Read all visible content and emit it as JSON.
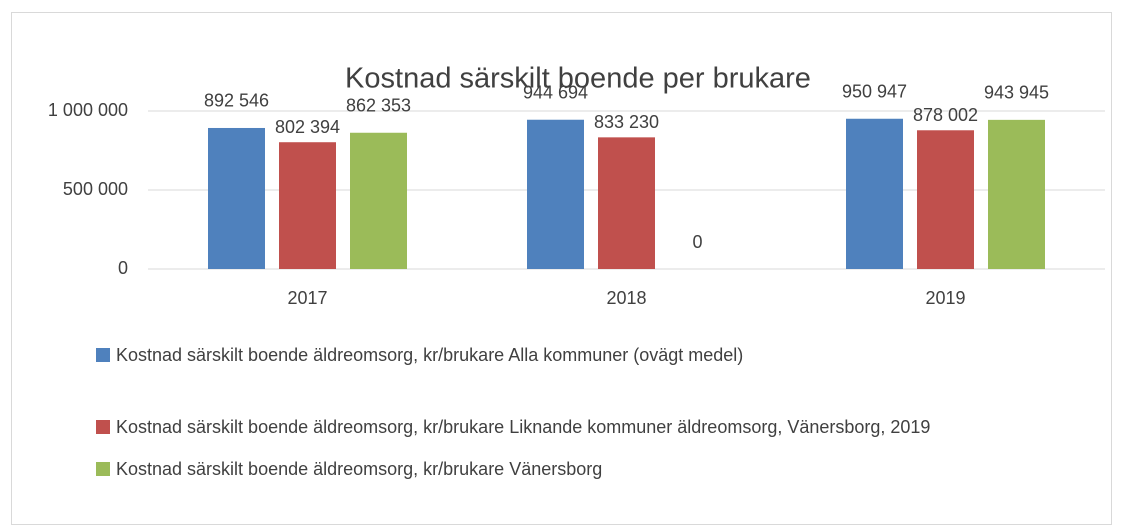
{
  "chart_data": {
    "type": "bar",
    "title": "Kostnad särskilt boende per brukare",
    "categories": [
      "2017",
      "2018",
      "2019"
    ],
    "series": [
      {
        "name": "Kostnad särskilt boende äldreomsorg, kr/brukare Alla kommuner (ovägt medel)",
        "color": "#4f81bd",
        "values": [
          892546,
          944694,
          950947
        ],
        "value_labels": [
          "892 546",
          "944 694",
          "950 947"
        ]
      },
      {
        "name": "Kostnad särskilt boende äldreomsorg, kr/brukare Liknande kommuner äldreomsorg, Vänersborg, 2019",
        "color": "#c0504d",
        "values": [
          802394,
          833230,
          878002
        ],
        "value_labels": [
          "802 394",
          "833 230",
          "878 002"
        ]
      },
      {
        "name": "Kostnad särskilt boende äldreomsorg, kr/brukare Vänersborg",
        "color": "#9bbb59",
        "values": [
          862353,
          0,
          943945
        ],
        "value_labels": [
          "862 353",
          "0",
          "943 945"
        ]
      }
    ],
    "ylim": [
      0,
      1000000
    ],
    "yticks": [
      0,
      {
        "value": 500000,
        "label": "500 000"
      },
      {
        "value": 1000000,
        "label": "1 000 000"
      }
    ],
    "grid": true
  }
}
